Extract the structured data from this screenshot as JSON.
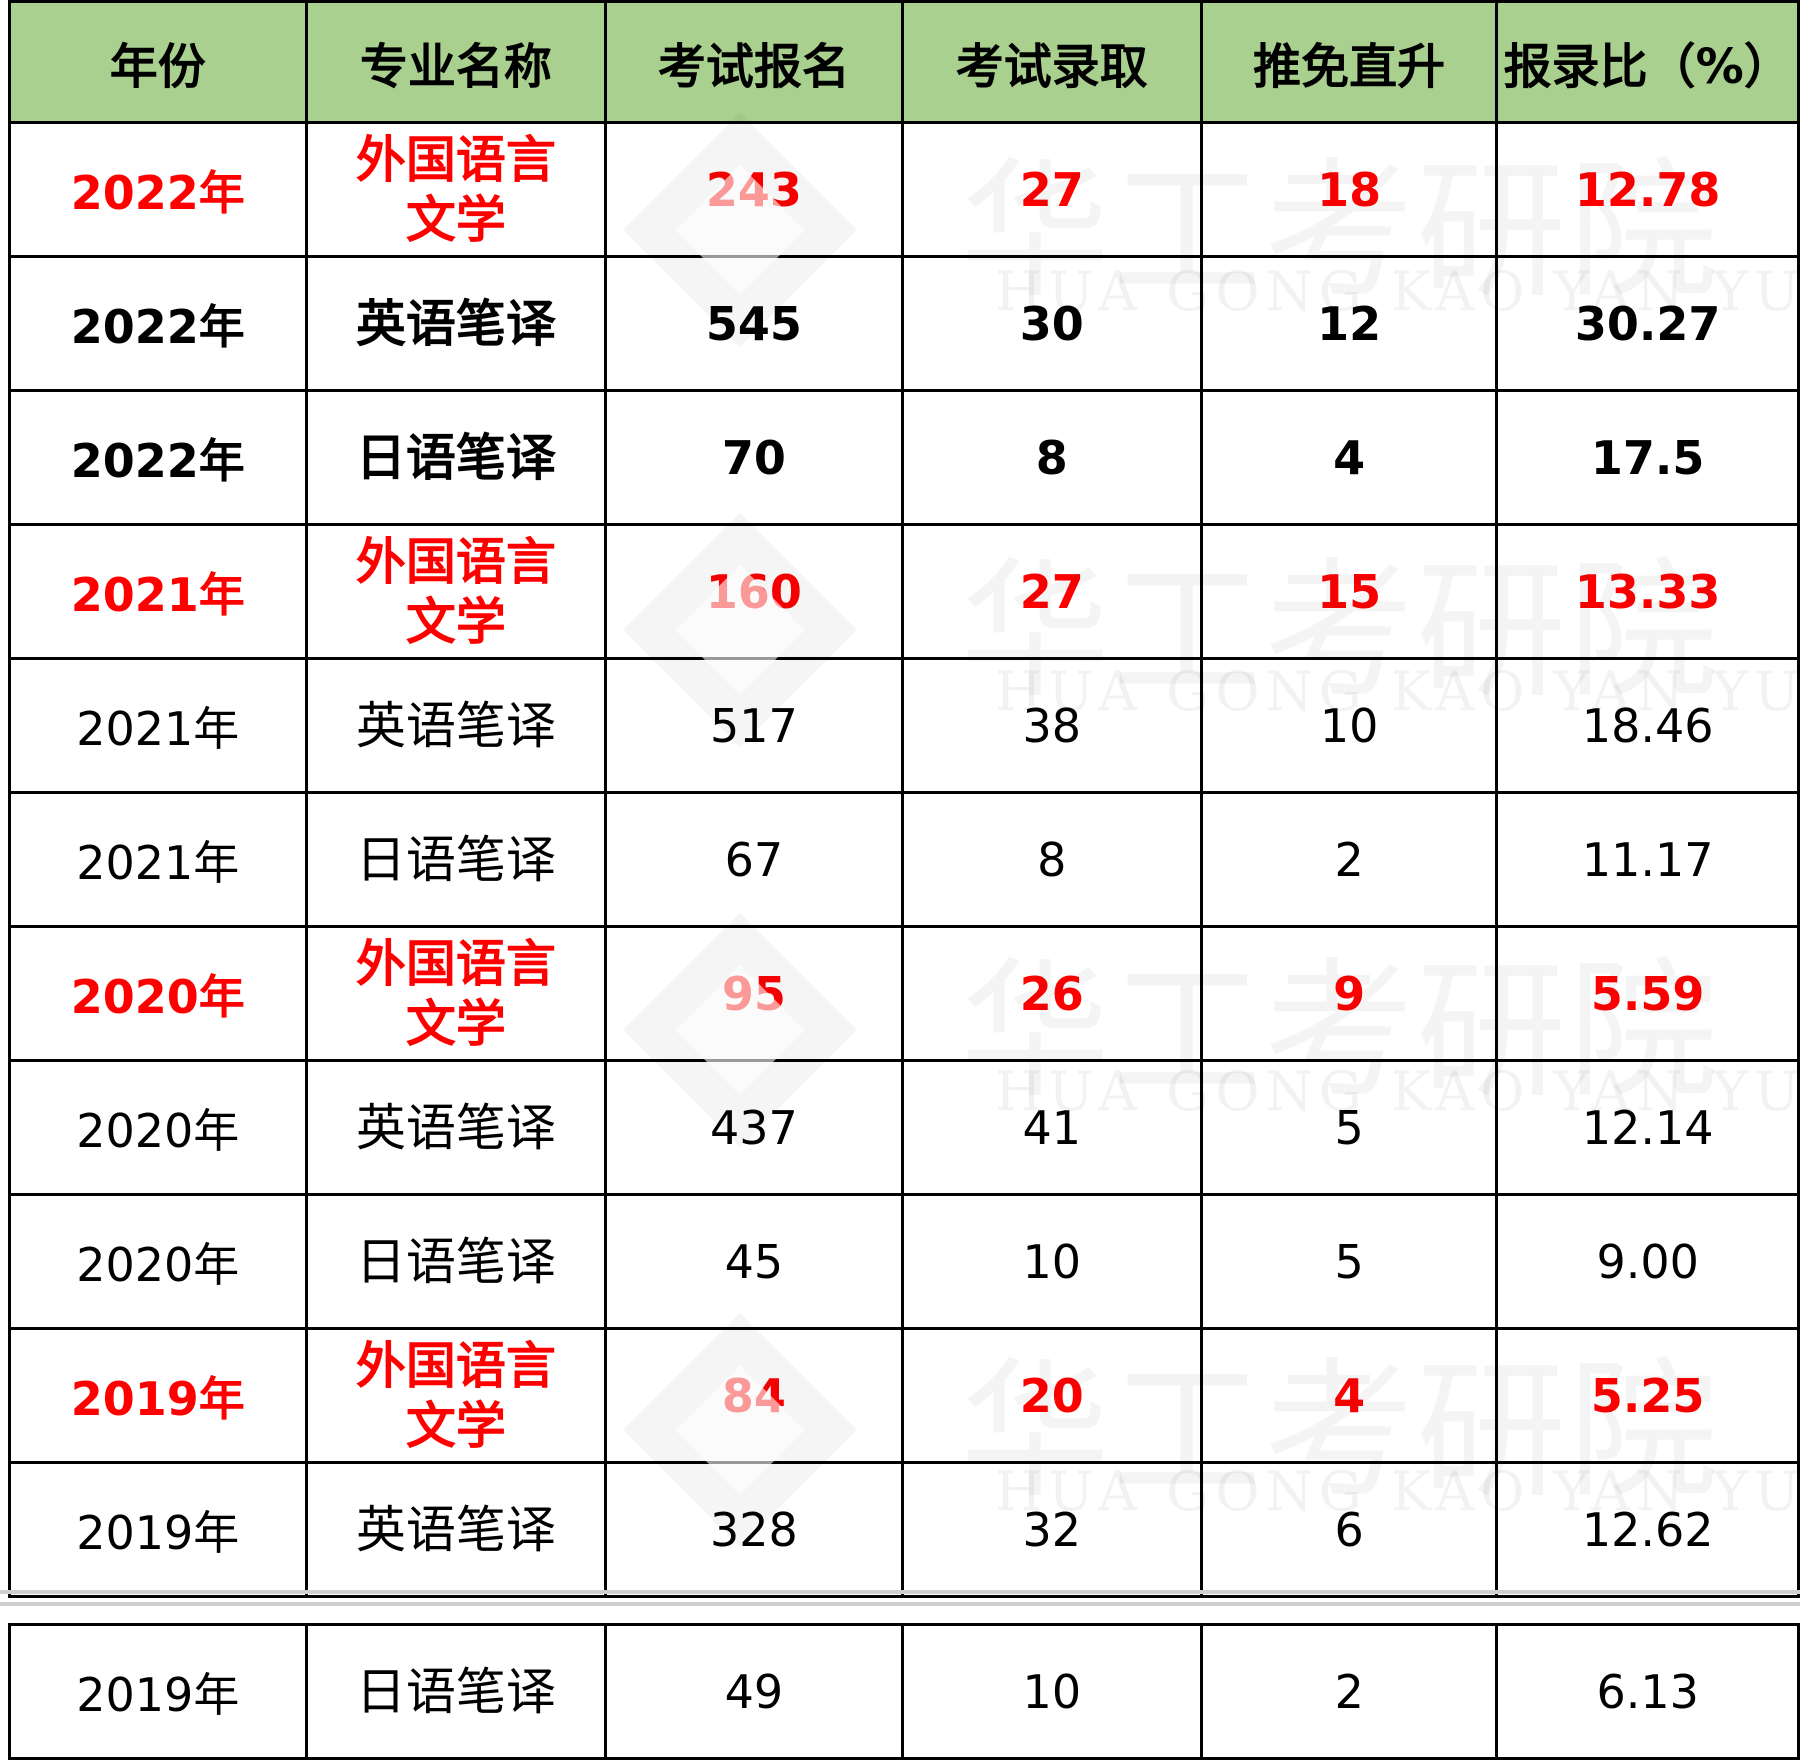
{
  "headers": [
    "年份",
    "专业名称",
    "考试报名",
    "考试录取",
    "推免直升",
    "报录比（%）"
  ],
  "rows": [
    {
      "year": "2022年",
      "major": "外国语言文学",
      "applicants": "243",
      "admitted": "27",
      "recommended": "18",
      "ratio": "12.78",
      "style": "highlight"
    },
    {
      "year": "2022年",
      "major": "英语笔译",
      "applicants": "545",
      "admitted": "30",
      "recommended": "12",
      "ratio": "30.27",
      "style": "bold"
    },
    {
      "year": "2022年",
      "major": "日语笔译",
      "applicants": "70",
      "admitted": "8",
      "recommended": "4",
      "ratio": "17.5",
      "style": "bold"
    },
    {
      "year": "2021年",
      "major": "外国语言文学",
      "applicants": "160",
      "admitted": "27",
      "recommended": "15",
      "ratio": "13.33",
      "style": "highlight"
    },
    {
      "year": "2021年",
      "major": "英语笔译",
      "applicants": "517",
      "admitted": "38",
      "recommended": "10",
      "ratio": "18.46",
      "style": "normal"
    },
    {
      "year": "2021年",
      "major": "日语笔译",
      "applicants": "67",
      "admitted": "8",
      "recommended": "2",
      "ratio": "11.17",
      "style": "normal"
    },
    {
      "year": "2020年",
      "major": "外国语言文学",
      "applicants": "95",
      "admitted": "26",
      "recommended": "9",
      "ratio": "5.59",
      "style": "highlight"
    },
    {
      "year": "2020年",
      "major": "英语笔译",
      "applicants": "437",
      "admitted": "41",
      "recommended": "5",
      "ratio": "12.14",
      "style": "normal"
    },
    {
      "year": "2020年",
      "major": "日语笔译",
      "applicants": "45",
      "admitted": "10",
      "recommended": "5",
      "ratio": "9.00",
      "style": "normal"
    },
    {
      "year": "2019年",
      "major": "外国语言文学",
      "applicants": "84",
      "admitted": "20",
      "recommended": "4",
      "ratio": "5.25",
      "style": "highlight"
    },
    {
      "year": "2019年",
      "major": "英语笔译",
      "applicants": "328",
      "admitted": "32",
      "recommended": "6",
      "ratio": "12.62",
      "style": "normal"
    }
  ],
  "tail_row": {
    "year": "2019年",
    "major": "日语笔译",
    "applicants": "49",
    "admitted": "10",
    "recommended": "2",
    "ratio": "6.13",
    "style": "normal"
  },
  "watermark": {
    "cn": "华工考研院",
    "en": "HUA GONG KAO YAN YUAN"
  },
  "colors": {
    "header_bg": "#a9d08e",
    "highlight_text": "#ff0000",
    "border": "#000000"
  }
}
